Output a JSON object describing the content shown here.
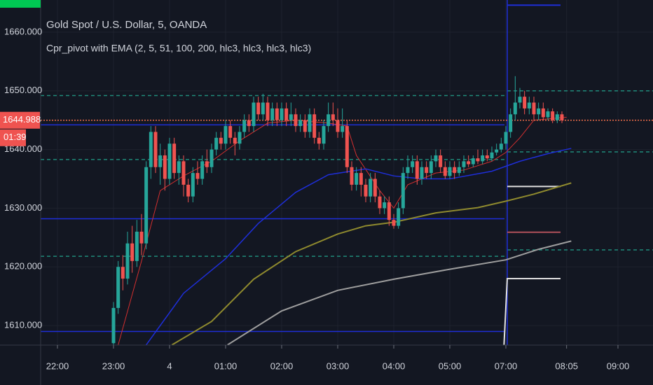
{
  "chart_data": {
    "type": "candlestick",
    "title": "Gold Spot / U.S. Dollar, 5, OANDA",
    "subtitle": "Cpr_pivot with EMA (2, 5, 51, 100, 200, hlc3, hlc3, hlc3, hlc3)",
    "countdown": "01:39",
    "up_color": "#26a69a",
    "down_color": "#ef5350",
    "grid": true,
    "xlim": [
      -3.6,
      127.5
    ],
    "ylim": [
      1606.67,
      1665.48
    ],
    "xticks": [
      {
        "value": 0,
        "label": "22:00"
      },
      {
        "value": 12,
        "label": "23:00"
      },
      {
        "value": 24,
        "label": "4"
      },
      {
        "value": 36,
        "label": "01:00"
      },
      {
        "value": 48,
        "label": "02:00"
      },
      {
        "value": 60,
        "label": "03:00"
      },
      {
        "value": 72,
        "label": "04:00"
      },
      {
        "value": 84,
        "label": "05:00"
      },
      {
        "value": 96,
        "label": "07:00"
      },
      {
        "value": 109,
        "label": "08:05"
      },
      {
        "value": 120,
        "label": "09:00"
      }
    ],
    "yticks": [
      {
        "value": 1610,
        "label": "1610.000"
      },
      {
        "value": 1620,
        "label": "1620.000"
      },
      {
        "value": 1630,
        "label": "1630.000"
      },
      {
        "value": 1640,
        "label": "1640.000"
      },
      {
        "value": 1650,
        "label": "1650.000"
      },
      {
        "value": 1660,
        "label": "1660.000"
      }
    ],
    "x": [
      12,
      13,
      14,
      15,
      16,
      17,
      18,
      19,
      20,
      21,
      22,
      23,
      24,
      25,
      26,
      27,
      28,
      29,
      30,
      31,
      32,
      33,
      34,
      35,
      36,
      37,
      38,
      39,
      40,
      41,
      42,
      43,
      44,
      45,
      46,
      47,
      48,
      49,
      50,
      51,
      52,
      53,
      54,
      55,
      56,
      57,
      58,
      59,
      60,
      61,
      62,
      63,
      64,
      65,
      66,
      67,
      68,
      69,
      70,
      71,
      72,
      73,
      74,
      75,
      76,
      77,
      78,
      79,
      80,
      81,
      82,
      83,
      84,
      85,
      86,
      87,
      88,
      89,
      90,
      91,
      92,
      93,
      94,
      95,
      96,
      97,
      98,
      99,
      100,
      101,
      102,
      103,
      104,
      105,
      106,
      107,
      108
    ],
    "open": [
      1607,
      1613,
      1620,
      1618,
      1624,
      1621,
      1626,
      1624,
      1637,
      1643,
      1637,
      1639,
      1635,
      1641,
      1636,
      1638,
      1634,
      1632,
      1636,
      1635,
      1638,
      1637,
      1640,
      1642,
      1641,
      1644,
      1642,
      1641,
      1643,
      1645,
      1644,
      1648,
      1646,
      1648,
      1645,
      1647,
      1645,
      1647,
      1645,
      1646,
      1644,
      1645,
      1643,
      1646,
      1642,
      1641,
      1644,
      1646,
      1645,
      1643,
      1644,
      1637,
      1634,
      1636,
      1634,
      1632,
      1635,
      1632,
      1630,
      1631,
      1628,
      1627,
      1630,
      1636,
      1637,
      1638,
      1635,
      1637,
      1636,
      1638,
      1639,
      1637,
      1635.5,
      1637,
      1636,
      1637,
      1638,
      1637.5,
      1638.5,
      1638,
      1639,
      1638.5,
      1639.5,
      1640,
      1641,
      1643,
      1646,
      1648,
      1649,
      1647,
      1648,
      1646,
      1647,
      1645.5,
      1646.5,
      1645,
      1646
    ],
    "high": [
      1614,
      1621,
      1622,
      1626,
      1627,
      1628,
      1629,
      1638,
      1644,
      1644,
      1641,
      1640,
      1642,
      1642,
      1639,
      1639,
      1635,
      1637,
      1638,
      1639,
      1640,
      1641,
      1643,
      1643,
      1645,
      1645,
      1643,
      1644,
      1646,
      1646,
      1649,
      1649,
      1649.5,
      1649,
      1648,
      1648,
      1648,
      1648,
      1648,
      1647,
      1646,
      1646,
      1647,
      1647,
      1643,
      1645,
      1648,
      1648,
      1647,
      1647,
      1645,
      1638,
      1637,
      1637,
      1635,
      1636,
      1636,
      1633,
      1632,
      1632,
      1629,
      1631,
      1637,
      1639,
      1639,
      1639,
      1638,
      1638,
      1639,
      1640,
      1640,
      1638,
      1638,
      1638,
      1638,
      1639,
      1639,
      1639,
      1640,
      1640,
      1640,
      1640.5,
      1641,
      1642,
      1644,
      1647,
      1652.5,
      1650.5,
      1650,
      1649,
      1649,
      1648,
      1648,
      1647,
      1647,
      1646.5,
      1646.5
    ],
    "low": [
      1606.7,
      1612,
      1616,
      1617,
      1619,
      1620,
      1622,
      1623,
      1635,
      1636,
      1634,
      1633,
      1634,
      1635,
      1634,
      1632,
      1631,
      1631,
      1634,
      1634,
      1636,
      1636,
      1639,
      1640,
      1640,
      1641,
      1639,
      1640,
      1642,
      1643,
      1643,
      1645,
      1645,
      1644,
      1644,
      1644,
      1644,
      1644,
      1644,
      1643,
      1643,
      1642,
      1642,
      1641,
      1640,
      1640,
      1643,
      1644,
      1642,
      1642,
      1636,
      1633,
      1633,
      1632,
      1631,
      1631,
      1631,
      1629,
      1629,
      1627,
      1626.5,
      1626.5,
      1629,
      1635,
      1636,
      1634,
      1634,
      1635,
      1635,
      1637,
      1636,
      1635,
      1635,
      1635,
      1635.5,
      1636,
      1637,
      1637,
      1637.5,
      1637.5,
      1638,
      1638,
      1639,
      1639.5,
      1640,
      1642,
      1645,
      1647,
      1646,
      1646,
      1645,
      1645,
      1645,
      1645,
      1644.5,
      1644.5,
      1644.5
    ],
    "close": [
      1613,
      1620,
      1618,
      1624,
      1621,
      1626,
      1624,
      1637,
      1643,
      1637,
      1639,
      1635,
      1641,
      1636,
      1638,
      1634,
      1632,
      1636,
      1635,
      1638,
      1637,
      1640,
      1642,
      1641,
      1644,
      1642,
      1641,
      1643,
      1645,
      1644,
      1648,
      1646,
      1648,
      1645,
      1647,
      1645,
      1647,
      1645,
      1646,
      1644,
      1645,
      1643,
      1646,
      1642,
      1641,
      1644,
      1646,
      1645,
      1643,
      1644,
      1637,
      1634,
      1636,
      1634,
      1632,
      1635,
      1632,
      1630,
      1631,
      1628,
      1627,
      1630,
      1636,
      1637,
      1638,
      1635,
      1637,
      1636,
      1638,
      1639,
      1637,
      1635.5,
      1637,
      1636,
      1637,
      1638,
      1637.5,
      1638.5,
      1638,
      1639,
      1638.5,
      1639.5,
      1640,
      1641,
      1643,
      1646,
      1648,
      1649,
      1647,
      1648,
      1646,
      1647,
      1645.5,
      1646.5,
      1645,
      1646,
      1644.988
    ],
    "lines": [
      {
        "color": "#1e2ed8",
        "style": "solid",
        "width": 1.5,
        "x": [
          -3.6,
          95.7
        ],
        "values": [
          1644.2,
          1644.2
        ]
      },
      {
        "color": "#1e2ed8",
        "style": "solid",
        "width": 1.5,
        "x": [
          -3.6,
          95.7
        ],
        "values": [
          1628.2,
          1628.2
        ]
      },
      {
        "color": "#1e2ed8",
        "style": "solid",
        "width": 1.5,
        "x": [
          -3.6,
          95.7
        ],
        "values": [
          1609,
          1609
        ]
      },
      {
        "color": "#1f8a7a",
        "style": "dashed",
        "width": 1.5,
        "x": [
          -3.6,
          95.7
        ],
        "values": [
          1649.2,
          1649.2
        ]
      },
      {
        "color": "#1f8a7a",
        "style": "dashed",
        "width": 1.5,
        "x": [
          -3.6,
          95.7
        ],
        "values": [
          1638.3,
          1638.3
        ]
      },
      {
        "color": "#1f8a7a",
        "style": "dashed",
        "width": 1.5,
        "x": [
          -3.6,
          95.7
        ],
        "values": [
          1621.8,
          1621.8
        ]
      },
      {
        "color": "#1f8a7a",
        "style": "dashed",
        "width": 1.5,
        "x": [
          96.3,
          127.5
        ],
        "values": [
          1650,
          1650
        ]
      },
      {
        "color": "#1f8a7a",
        "style": "dashed",
        "width": 1.5,
        "x": [
          96.3,
          127.5
        ],
        "values": [
          1639.6,
          1639.6
        ]
      },
      {
        "color": "#1f8a7a",
        "style": "dashed",
        "width": 1.5,
        "x": [
          96.3,
          127.5
        ],
        "values": [
          1622.9,
          1622.9
        ]
      },
      {
        "color": "#1e2ed8",
        "style": "solid",
        "width": 1.5,
        "x": [
          96.3,
          96.3
        ],
        "values": [
          1606.67,
          1665.48
        ]
      },
      {
        "color": "#1e2ed8",
        "style": "solid",
        "width": 2,
        "x": [
          96.3,
          107.7
        ],
        "values": [
          1664.6,
          1664.6
        ]
      },
      {
        "color": "#e0e0e0",
        "style": "solid",
        "width": 2,
        "x": [
          96.3,
          107.7
        ],
        "values": [
          1633.7,
          1633.7
        ]
      },
      {
        "color": "#b0505a",
        "style": "solid",
        "width": 2,
        "x": [
          96.3,
          107.7
        ],
        "values": [
          1625.9,
          1625.9
        ]
      },
      {
        "color": "#e0e0e0",
        "style": "solid",
        "width": 2,
        "x": [
          95.6,
          96.3,
          107.7
        ],
        "values": [
          1606.7,
          1618,
          1618
        ]
      },
      {
        "color": "#d32f2f",
        "style": "solid",
        "width": 1,
        "x": [
          13,
          18,
          22,
          27,
          33,
          39,
          45,
          51,
          58,
          62,
          64,
          69,
          72,
          75,
          81,
          87,
          93,
          96,
          99,
          102,
          109
        ],
        "values": [
          1606.7,
          1621,
          1633,
          1635.5,
          1638,
          1641.5,
          1644.5,
          1645,
          1644.5,
          1644,
          1639,
          1633,
          1630,
          1634,
          1636,
          1636.5,
          1638,
          1639.5,
          1642,
          1645,
          1645.5
        ]
      },
      {
        "color": "#1e2ed8",
        "style": "solid",
        "width": 1.5,
        "x": [
          19,
          27,
          36,
          43,
          51,
          58,
          66,
          72,
          78,
          84,
          93,
          99,
          105,
          110
        ],
        "values": [
          1606.7,
          1615.5,
          1621.4,
          1627.4,
          1632.7,
          1635.7,
          1636.7,
          1635.5,
          1635,
          1635,
          1636.3,
          1638,
          1639.3,
          1640.2
        ]
      },
      {
        "color": "#8f8a2e",
        "style": "solid",
        "width": 2,
        "x": [
          24.5,
          33,
          42,
          51,
          60,
          66,
          72,
          81,
          90,
          96,
          102,
          110
        ],
        "values": [
          1606.7,
          1610.7,
          1617.9,
          1622.6,
          1625.6,
          1627,
          1627.6,
          1629.2,
          1630.1,
          1631.2,
          1632.4,
          1634.3
        ]
      },
      {
        "color": "#9e9e9e",
        "style": "solid",
        "width": 2,
        "x": [
          36.4,
          48,
          60,
          72,
          84,
          96,
          103,
          110
        ],
        "values": [
          1606.7,
          1612.5,
          1616,
          1617.9,
          1619.6,
          1621.2,
          1623,
          1624.4
        ]
      },
      {
        "color": "#ef6c4a",
        "style": "dotted",
        "width": 1.5,
        "x": [
          -3.6,
          127.5
        ],
        "values": [
          1644.988,
          1644.988
        ]
      }
    ]
  }
}
